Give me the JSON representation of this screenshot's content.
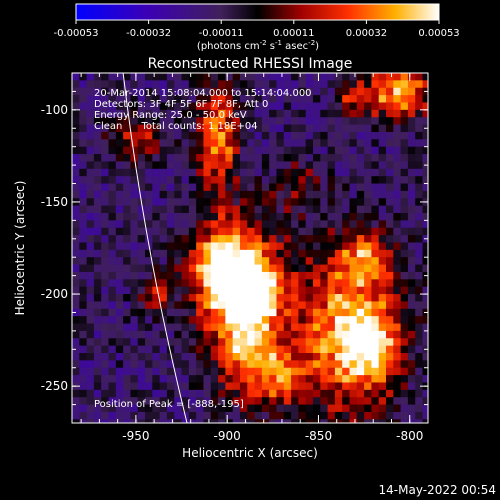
{
  "chart_data": {
    "type": "heatmap",
    "title": "Reconstructed RHESSI Image",
    "xlabel": "Heliocentric X (arcsec)",
    "ylabel": "Heliocentric Y (arcsec)",
    "xlim": [
      -985,
      -790
    ],
    "ylim": [
      -270,
      -80
    ],
    "xticks": [
      -950,
      -900,
      -850,
      -800
    ],
    "yticks": [
      -100,
      -150,
      -200,
      -250
    ],
    "colorbar": {
      "ticks": [
        "-0.00053",
        "-0.00032",
        "-0.00011",
        "0.00011",
        "0.00032",
        "0.00053"
      ],
      "range": [
        -0.00053,
        0.00053
      ],
      "label_main": "(photons cm",
      "label_exp1": "-2",
      "label_mid1": " s",
      "label_exp2": "-1",
      "label_mid2": " asec",
      "label_exp3": "-2",
      "label_end": ")"
    },
    "info_lines": [
      "20-Mar-2014 15:08:04.000 to 15:14:04.000",
      "Detectors: 3F 4F 5F 6F 7F 8F, Att 0",
      "Energy Range: 25.0 - 50.0 keV",
      "Clean      Total counts: 1.18E+04"
    ],
    "peak_label": "Position of Peak = [-888,-195]",
    "peak": [
      -888,
      -195
    ],
    "limb_x_at_top": -957,
    "limb_x_at_bottom": -922,
    "sources": [
      {
        "x": -895,
        "y": -190,
        "amp": 1.0,
        "sx": 16,
        "sy": 22
      },
      {
        "x": -885,
        "y": -200,
        "amp": 0.8,
        "sx": 10,
        "sy": 10
      },
      {
        "x": -905,
        "y": -185,
        "amp": 0.6,
        "sx": 10,
        "sy": 12
      },
      {
        "x": -905,
        "y": -115,
        "amp": 0.8,
        "sx": 8,
        "sy": 18
      },
      {
        "x": -890,
        "y": -230,
        "amp": 0.75,
        "sx": 12,
        "sy": 20
      },
      {
        "x": -835,
        "y": -220,
        "amp": 0.9,
        "sx": 20,
        "sy": 30
      },
      {
        "x": -820,
        "y": -230,
        "amp": 0.6,
        "sx": 10,
        "sy": 14
      },
      {
        "x": -805,
        "y": -90,
        "amp": 0.9,
        "sx": 12,
        "sy": 10
      },
      {
        "x": -830,
        "y": -95,
        "amp": 0.5,
        "sx": 8,
        "sy": 6
      },
      {
        "x": -950,
        "y": -115,
        "amp": 0.5,
        "sx": 10,
        "sy": 8
      },
      {
        "x": -870,
        "y": -245,
        "amp": 0.6,
        "sx": 8,
        "sy": 10
      },
      {
        "x": -940,
        "y": -200,
        "amp": 0.45,
        "sx": 6,
        "sy": 8
      },
      {
        "x": -825,
        "y": -180,
        "amp": 0.55,
        "sx": 10,
        "sy": 10
      },
      {
        "x": -860,
        "y": -140,
        "amp": 0.3,
        "sx": 10,
        "sy": 10
      }
    ]
  },
  "footer": {
    "date": "14-May-2022 00:54"
  }
}
